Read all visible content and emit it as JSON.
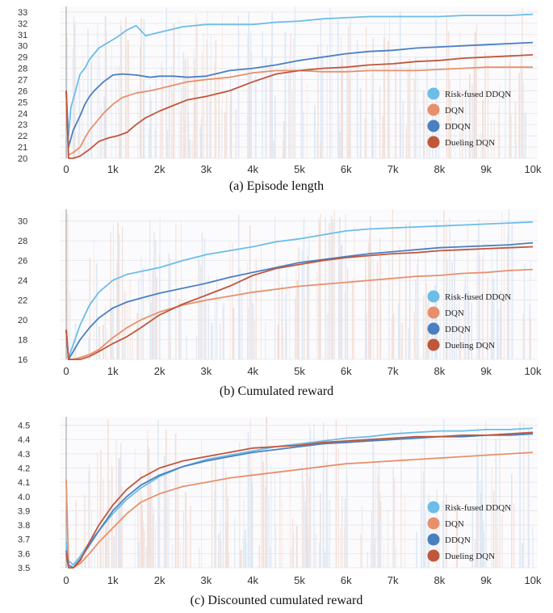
{
  "chart_data": [
    {
      "type": "line",
      "caption": "(a) Episode length",
      "x_ticks": [
        "0",
        "1k",
        "2k",
        "3k",
        "4k",
        "5k",
        "6k",
        "7k",
        "8k",
        "9k",
        "10k"
      ],
      "xlim": [
        0,
        10000
      ],
      "ylim": [
        20,
        33.5
      ],
      "y_ticks": [
        20,
        21,
        22,
        23,
        24,
        25,
        26,
        27,
        28,
        29,
        30,
        31,
        32,
        33
      ],
      "legend": [
        "Risk-fused DDQN",
        "DQN",
        "DDQN",
        "Dueling DQN"
      ],
      "legend_position": "bottom-right",
      "colors": [
        "#6cbde8",
        "#e8906b",
        "#4a7fc1",
        "#c0563a"
      ],
      "series": [
        {
          "name": "Risk-fused DDQN",
          "x": [
            0,
            50,
            100,
            200,
            300,
            400,
            500,
            700,
            900,
            1100,
            1300,
            1500,
            1700,
            2000,
            2500,
            3000,
            3500,
            4000,
            4500,
            5000,
            5500,
            6000,
            6500,
            7000,
            7500,
            8000,
            8500,
            9000,
            9500,
            10000
          ],
          "values": [
            26,
            22,
            24.5,
            26,
            27.5,
            28,
            28.8,
            29.8,
            30.3,
            30.8,
            31.4,
            31.8,
            30.9,
            31.2,
            31.7,
            31.9,
            31.9,
            31.9,
            32.1,
            32.2,
            32.4,
            32.5,
            32.6,
            32.6,
            32.6,
            32.6,
            32.7,
            32.7,
            32.7,
            32.8
          ]
        },
        {
          "name": "DQN",
          "x": [
            0,
            50,
            150,
            300,
            400,
            500,
            600,
            800,
            1000,
            1200,
            1500,
            1800,
            2000,
            2300,
            2600,
            3000,
            3500,
            4000,
            4500,
            5000,
            5500,
            6000,
            6500,
            7000,
            7500,
            8000,
            8500,
            9000,
            9500,
            10000
          ],
          "values": [
            26,
            20.3,
            20.5,
            21,
            21.8,
            22.5,
            23,
            24,
            24.8,
            25.4,
            25.8,
            26,
            26.2,
            26.5,
            26.8,
            27,
            27.2,
            27.6,
            27.8,
            27.8,
            27.7,
            27.7,
            27.8,
            27.8,
            27.8,
            27.9,
            28,
            28.1,
            28.1,
            28.1
          ]
        },
        {
          "name": "DDQN",
          "x": [
            0,
            50,
            150,
            300,
            400,
            500,
            600,
            800,
            1000,
            1200,
            1500,
            1800,
            2000,
            2300,
            2600,
            3000,
            3500,
            4000,
            4500,
            5000,
            5500,
            6000,
            6500,
            7000,
            7500,
            8000,
            8500,
            9000,
            9500,
            10000
          ],
          "values": [
            26,
            21,
            22.5,
            23.8,
            24.8,
            25.5,
            26,
            26.8,
            27.4,
            27.5,
            27.4,
            27.2,
            27.3,
            27.3,
            27.2,
            27.3,
            27.8,
            28,
            28.3,
            28.7,
            29,
            29.3,
            29.5,
            29.6,
            29.8,
            29.9,
            30,
            30.1,
            30.2,
            30.3
          ]
        },
        {
          "name": "Dueling DQN",
          "x": [
            0,
            50,
            150,
            300,
            500,
            700,
            900,
            1100,
            1300,
            1500,
            1700,
            2000,
            2300,
            2600,
            3000,
            3500,
            4000,
            4500,
            5000,
            5500,
            6000,
            6500,
            7000,
            7500,
            8000,
            8500,
            9000,
            9500,
            10000
          ],
          "values": [
            26,
            20,
            20,
            20.2,
            20.8,
            21.5,
            21.8,
            22,
            22.3,
            23,
            23.6,
            24.2,
            24.7,
            25.2,
            25.5,
            26,
            26.8,
            27.5,
            27.8,
            28,
            28.1,
            28.3,
            28.4,
            28.6,
            28.7,
            28.9,
            29,
            29.1,
            29.2
          ]
        }
      ]
    },
    {
      "type": "line",
      "caption": "(b) Cumulated reward",
      "x_ticks": [
        "0",
        "1k",
        "2k",
        "3k",
        "4k",
        "5k",
        "6k",
        "7k",
        "8k",
        "9k",
        "10k"
      ],
      "xlim": [
        0,
        10000
      ],
      "ylim": [
        16,
        31.2
      ],
      "y_ticks": [
        16,
        18,
        20,
        22,
        24,
        26,
        28,
        30
      ],
      "legend": [
        "Risk-fused DDQN",
        "DQN",
        "DDQN",
        "Dueling DQN"
      ],
      "legend_position": "bottom-right",
      "colors": [
        "#6cbde8",
        "#e8906b",
        "#4a7fc1",
        "#c0563a"
      ],
      "series": [
        {
          "name": "Risk-fused DDQN",
          "x": [
            0,
            50,
            150,
            300,
            500,
            700,
            1000,
            1300,
            1600,
            2000,
            2500,
            3000,
            3500,
            4000,
            4500,
            5000,
            5500,
            6000,
            6500,
            7000,
            7500,
            8000,
            8500,
            9000,
            9500,
            10000
          ],
          "values": [
            19,
            16.2,
            17.5,
            19.5,
            21.5,
            22.8,
            24,
            24.6,
            24.9,
            25.3,
            26,
            26.6,
            27,
            27.4,
            27.9,
            28.2,
            28.6,
            29,
            29.2,
            29.3,
            29.4,
            29.5,
            29.6,
            29.7,
            29.8,
            29.9
          ]
        },
        {
          "name": "DQN",
          "x": [
            0,
            50,
            150,
            300,
            500,
            700,
            1000,
            1300,
            1600,
            2000,
            2500,
            3000,
            3500,
            4000,
            4500,
            5000,
            5500,
            6000,
            6500,
            7000,
            7500,
            8000,
            8500,
            9000,
            9500,
            10000
          ],
          "values": [
            19,
            16,
            16,
            16.2,
            16.5,
            17,
            18.2,
            19.2,
            20,
            20.8,
            21.5,
            22,
            22.4,
            22.8,
            23.1,
            23.4,
            23.6,
            23.8,
            24,
            24.2,
            24.4,
            24.5,
            24.7,
            24.8,
            25,
            25.1
          ]
        },
        {
          "name": "DDQN",
          "x": [
            0,
            50,
            150,
            300,
            500,
            700,
            1000,
            1300,
            1600,
            2000,
            2500,
            3000,
            3500,
            4000,
            4500,
            5000,
            5500,
            6000,
            6500,
            7000,
            7500,
            8000,
            8500,
            9000,
            9500,
            10000
          ],
          "values": [
            19,
            16,
            16.8,
            18,
            19.2,
            20.2,
            21.2,
            21.8,
            22.2,
            22.7,
            23.2,
            23.7,
            24.3,
            24.8,
            25.3,
            25.8,
            26.1,
            26.4,
            26.7,
            26.9,
            27.1,
            27.3,
            27.4,
            27.5,
            27.6,
            27.8
          ]
        },
        {
          "name": "Dueling DQN",
          "x": [
            0,
            50,
            150,
            300,
            500,
            700,
            1000,
            1300,
            1600,
            2000,
            2500,
            3000,
            3500,
            4000,
            4500,
            5000,
            5500,
            6000,
            6500,
            7000,
            7500,
            8000,
            8500,
            9000,
            9500,
            10000
          ],
          "values": [
            19,
            16,
            16,
            16,
            16.3,
            16.8,
            17.6,
            18.3,
            19.2,
            20.5,
            21.6,
            22.5,
            23.4,
            24.5,
            25.2,
            25.6,
            26,
            26.3,
            26.5,
            26.7,
            26.8,
            27,
            27.1,
            27.2,
            27.3,
            27.4
          ]
        }
      ]
    },
    {
      "type": "line",
      "caption": "(c) Discounted cumulated reward",
      "x_ticks": [
        "0",
        "1k",
        "2k",
        "3k",
        "4k",
        "5k",
        "6k",
        "7k",
        "8k",
        "9k",
        "10k"
      ],
      "xlim": [
        0,
        10000
      ],
      "ylim": [
        3.5,
        4.56
      ],
      "y_ticks": [
        3.5,
        3.6,
        3.7,
        3.8,
        3.9,
        4.0,
        4.1,
        4.2,
        4.3,
        4.4,
        4.5
      ],
      "y_tick_labels": [
        "3.5",
        "3.6",
        "3.7",
        "3.8",
        "3.9",
        "4.0",
        "4.1",
        "4.2",
        "4.3",
        "4.4",
        "4.5"
      ],
      "legend": [
        "Risk-fused DDQN",
        "DQN",
        "DDQN",
        "Dueling DQN"
      ],
      "legend_position": "bottom-right",
      "colors": [
        "#6cbde8",
        "#e8906b",
        "#4a7fc1",
        "#c0563a"
      ],
      "series": [
        {
          "name": "Risk-fused DDQN",
          "x": [
            0,
            50,
            150,
            300,
            500,
            700,
            1000,
            1300,
            1600,
            2000,
            2500,
            3000,
            3500,
            4000,
            4500,
            5000,
            5500,
            6000,
            6500,
            7000,
            7500,
            8000,
            8500,
            9000,
            9500,
            10000
          ],
          "values": [
            3.68,
            3.55,
            3.52,
            3.58,
            3.68,
            3.76,
            3.88,
            3.98,
            4.06,
            4.14,
            4.21,
            4.26,
            4.29,
            4.32,
            4.35,
            4.37,
            4.39,
            4.41,
            4.42,
            4.44,
            4.45,
            4.46,
            4.46,
            4.47,
            4.47,
            4.48
          ]
        },
        {
          "name": "DQN",
          "x": [
            0,
            50,
            150,
            300,
            500,
            700,
            1000,
            1300,
            1600,
            2000,
            2500,
            3000,
            3500,
            4000,
            4500,
            5000,
            5500,
            6000,
            6500,
            7000,
            7500,
            8000,
            8500,
            9000,
            9500,
            10000
          ],
          "values": [
            4.12,
            3.52,
            3.5,
            3.53,
            3.6,
            3.68,
            3.78,
            3.88,
            3.96,
            4.02,
            4.07,
            4.1,
            4.13,
            4.15,
            4.17,
            4.19,
            4.21,
            4.23,
            4.24,
            4.25,
            4.26,
            4.27,
            4.28,
            4.29,
            4.3,
            4.31
          ]
        },
        {
          "name": "DDQN",
          "x": [
            0,
            50,
            150,
            300,
            500,
            700,
            1000,
            1300,
            1600,
            2000,
            2500,
            3000,
            3500,
            4000,
            4500,
            5000,
            5500,
            6000,
            6500,
            7000,
            7500,
            8000,
            8500,
            9000,
            9500,
            10000
          ],
          "values": [
            3.62,
            3.52,
            3.5,
            3.56,
            3.66,
            3.76,
            3.9,
            4.0,
            4.08,
            4.15,
            4.21,
            4.25,
            4.28,
            4.31,
            4.33,
            4.35,
            4.37,
            4.38,
            4.39,
            4.4,
            4.41,
            4.42,
            4.42,
            4.43,
            4.43,
            4.44
          ]
        },
        {
          "name": "Dueling DQN",
          "x": [
            0,
            50,
            150,
            300,
            500,
            700,
            1000,
            1300,
            1600,
            2000,
            2500,
            3000,
            3500,
            4000,
            4500,
            5000,
            5500,
            6000,
            6500,
            7000,
            7500,
            8000,
            8500,
            9000,
            9500,
            10000
          ],
          "values": [
            3.6,
            3.5,
            3.5,
            3.55,
            3.68,
            3.8,
            3.94,
            4.05,
            4.13,
            4.2,
            4.25,
            4.28,
            4.31,
            4.34,
            4.35,
            4.36,
            4.38,
            4.39,
            4.4,
            4.41,
            4.42,
            4.42,
            4.43,
            4.43,
            4.44,
            4.45
          ]
        }
      ]
    }
  ]
}
